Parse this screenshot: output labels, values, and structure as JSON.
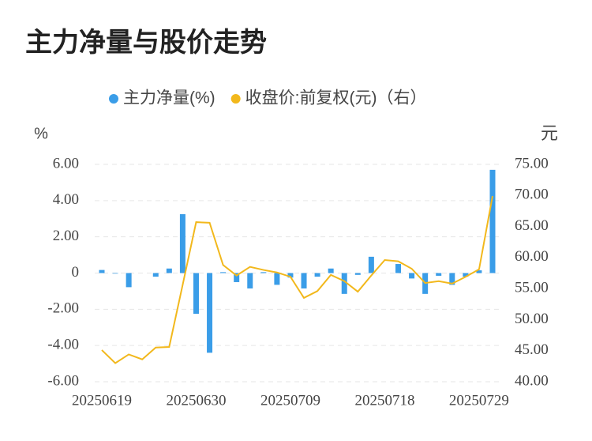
{
  "chart_data": {
    "type": "bar_line",
    "title": "主力净量与股价走势",
    "y_label": "%",
    "y2_label": "元",
    "categories": [
      "20250619",
      null,
      null,
      null,
      null,
      null,
      null,
      "20250630",
      null,
      null,
      null,
      null,
      null,
      null,
      "20250709",
      null,
      null,
      null,
      null,
      null,
      null,
      "20250718",
      null,
      null,
      null,
      null,
      null,
      null,
      "20250729",
      null
    ],
    "series": [
      {
        "name": "主力净量(%)",
        "color": "#3a9de8",
        "type": "bar",
        "values": [
          0.17,
          -0.03,
          -0.78,
          0,
          -0.2,
          0.25,
          3.25,
          -2.25,
          -4.4,
          0.05,
          -0.5,
          -0.85,
          0.05,
          -0.65,
          -0.25,
          -0.85,
          -0.2,
          0.25,
          -1.15,
          -0.1,
          0.9,
          0,
          0.5,
          -0.3,
          -1.15,
          -0.15,
          -0.65,
          -0.2,
          0.15,
          5.7
        ]
      },
      {
        "name": "收盘价:前复权(元)（右）",
        "color": "#f2b81c",
        "type": "line",
        "axis": "y2",
        "values": [
          45.1,
          43.0,
          44.4,
          43.6,
          45.5,
          45.6,
          55.6,
          65.7,
          65.6,
          58.8,
          57.1,
          58.5,
          58.0,
          57.6,
          56.9,
          53.5,
          54.6,
          57.2,
          56.2,
          54.5,
          57.1,
          59.6,
          59.4,
          58.2,
          55.9,
          56.2,
          55.8,
          56.9,
          58.1,
          69.9
        ]
      }
    ],
    "ylim": [
      -6,
      6
    ],
    "yticks": [
      {
        "value": -6,
        "label": "-6.00"
      },
      {
        "value": -4,
        "label": "-4.00"
      },
      {
        "value": -2,
        "label": "-2.00"
      },
      0,
      {
        "value": 2,
        "label": "2.00"
      },
      {
        "value": 4,
        "label": "4.00"
      },
      {
        "value": 6,
        "label": "6.00"
      }
    ],
    "y2lim": [
      40,
      75
    ],
    "y2ticks": [
      {
        "value": 40,
        "label": "40.00"
      },
      {
        "value": 45,
        "label": "45.00"
      },
      {
        "value": 50,
        "label": "50.00"
      },
      {
        "value": 55,
        "label": "55.00"
      },
      {
        "value": 60,
        "label": "60.00"
      },
      {
        "value": 65,
        "label": "65.00"
      },
      {
        "value": 70,
        "label": "70.00"
      },
      {
        "value": 75,
        "label": "75.00"
      }
    ],
    "grid": true,
    "legend": "top"
  }
}
